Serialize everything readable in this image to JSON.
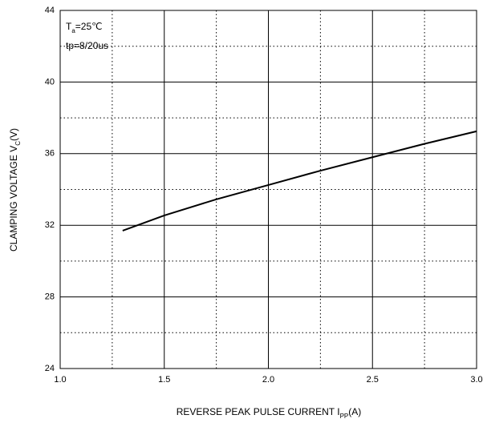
{
  "chart_data": {
    "type": "line",
    "annotations": [
      [
        "T",
        "a",
        "=25℃"
      ],
      [
        "tp=8/20us"
      ]
    ],
    "x_label": [
      "REVERSE PEAK PULSE CURRENT  I",
      "PP",
      "(A)"
    ],
    "y_label": [
      "CLAMPING VOLTAGE  V",
      "C",
      "(V)"
    ],
    "x": [
      1.3,
      1.5,
      1.75,
      2.0,
      2.25,
      2.5,
      2.75,
      3.0
    ],
    "series": [
      {
        "color": "#000000",
        "values": [
          31.7,
          32.55,
          33.45,
          34.25,
          35.05,
          35.8,
          36.55,
          37.25
        ]
      }
    ],
    "xlim": [
      1,
      3
    ],
    "ylim": [
      24,
      44
    ],
    "xticks": [
      {
        "value": 1,
        "label": "1.0"
      },
      1.5,
      {
        "value": 2,
        "label": "2.0"
      },
      2.5,
      {
        "value": 3,
        "label": "3.0"
      }
    ],
    "yticks": [
      24,
      28,
      32,
      36,
      40,
      44
    ],
    "x_minor_grid": [
      1.25,
      1.75,
      2.25,
      2.75
    ],
    "y_minor_grid": [
      26,
      30,
      34,
      38,
      42
    ],
    "grid": true
  }
}
